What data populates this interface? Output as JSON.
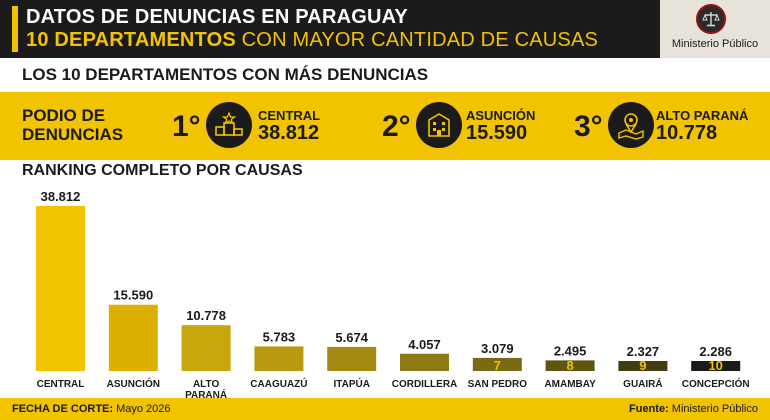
{
  "header": {
    "title_line1": "DATOS DE DENUNCIAS EN PARAGUAY",
    "title_line2_bold": "10 DEPARTAMENTOS",
    "title_line2_rest": " CON MAYOR CANTIDAD DE CAUSAS",
    "logo_text": "Ministerio Público"
  },
  "subheader": {
    "title": "LOS 10 DEPARTAMENTOS CON MÁS DENUNCIAS"
  },
  "podium": {
    "label_line1": "PODIO DE",
    "label_line2": "DENUNCIAS",
    "places": [
      {
        "rank": "1°",
        "name": "CENTRAL",
        "value": "38.812",
        "icon": "podium-icon"
      },
      {
        "rank": "2°",
        "name": "ASUNCIÓN",
        "value": "15.590",
        "icon": "building-icon"
      },
      {
        "rank": "3°",
        "name": "ALTO PARANÁ",
        "value": "10.778",
        "icon": "map-pin-icon"
      }
    ]
  },
  "chart_data": {
    "type": "bar",
    "title": "RANKING COMPLETO POR CAUSAS",
    "categories": [
      "CENTRAL",
      "ASUNCIÓN",
      "ALTO PARANÁ",
      "CAAGUAZÚ",
      "ITAPÚA",
      "CORDILLERA",
      "SAN PEDRO",
      "AMAMBAY",
      "GUAIRÁ",
      "CONCEPCIÓN"
    ],
    "values": [
      38812,
      15590,
      10778,
      5783,
      5674,
      4057,
      3079,
      2495,
      2327,
      2286
    ],
    "value_labels": [
      "38.812",
      "15.590",
      "10.778",
      "5.783",
      "5.674",
      "4.057",
      "3.079",
      "2.495",
      "2.327",
      "2.286"
    ],
    "rank_labels": [
      "",
      "",
      "",
      "",
      "",
      "",
      "7",
      "8",
      "9",
      "10"
    ],
    "colors": [
      "#f2c300",
      "#dcb000",
      "#c9a60c",
      "#b8990f",
      "#a58a12",
      "#8f7a14",
      "#7a6a14",
      "#5f5412",
      "#433c10",
      "#1b1b1b"
    ],
    "rank_label_color": "#f2c300",
    "ylim": [
      0,
      38812
    ]
  },
  "footer": {
    "left_label": "FECHA DE CORTE:",
    "left_value": " Mayo 2026",
    "right_label": "Fuente:",
    "right_value": " Ministerio Público"
  }
}
